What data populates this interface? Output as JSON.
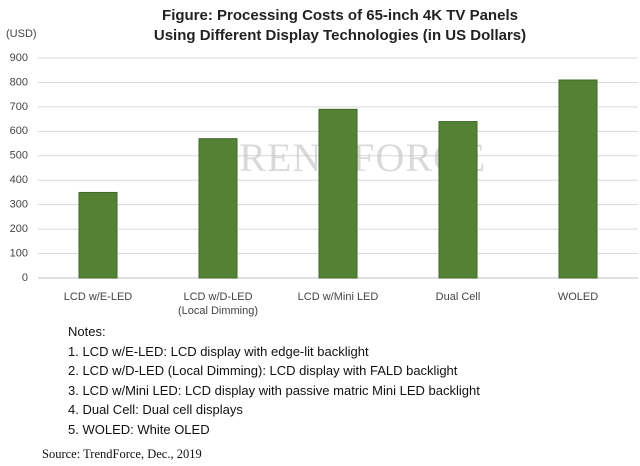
{
  "chart_data": {
    "type": "bar",
    "title": "Figure: Processing Costs of 65-inch 4K TV Panels\nUsing Different Display Technologies (in US Dollars)",
    "y_unit": "(USD)",
    "watermark": "TRENDFORCE",
    "categories": [
      "LCD w/E-LED",
      "LCD w/D-LED\n(Local Dimming)",
      "LCD w/Mini LED",
      "Dual Cell",
      "WOLED"
    ],
    "values": [
      350,
      570,
      690,
      640,
      810
    ],
    "color": "#548235",
    "ylim": [
      0,
      900
    ],
    "yticks": [
      0,
      100,
      200,
      300,
      400,
      500,
      600,
      700,
      800,
      900
    ],
    "grid": true,
    "notes_title": "Notes:",
    "notes": [
      "1. LCD w/E-LED: LCD display with edge-lit backlight",
      "2. LCD w/D-LED (Local Dimming): LCD display with FALD backlight",
      "3. LCD w/Mini LED: LCD display with passive matric Mini LED backlight",
      "4. Dual Cell: Dual cell displays",
      "5. WOLED: White OLED"
    ],
    "source": "Source: TrendForce, Dec., 2019"
  }
}
